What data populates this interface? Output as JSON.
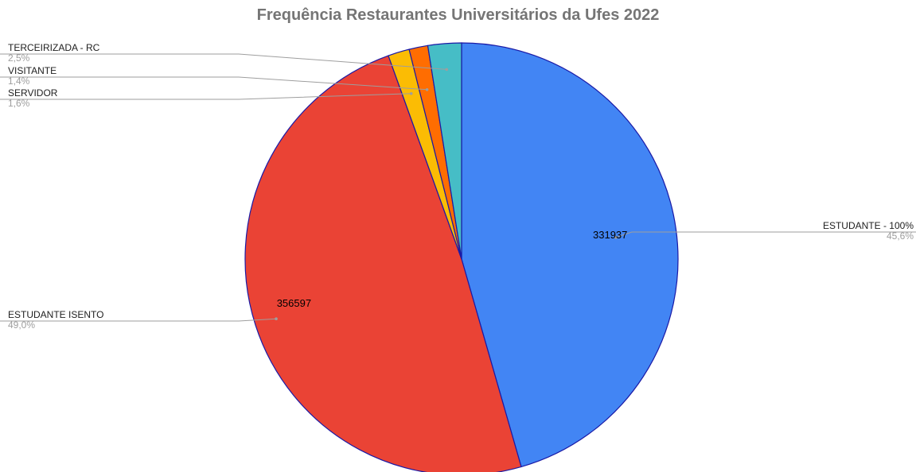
{
  "chart_data": {
    "type": "pie",
    "title": "Frequência Restaurantes Universitários da Ufes 2022",
    "slices": [
      {
        "label": "ESTUDANTE - 100%",
        "value": 331937,
        "percent_label": "45,6%",
        "value_label": "331937",
        "color": "#4285f4"
      },
      {
        "label": "ESTUDANTE ISENTO",
        "value": 356597,
        "percent_label": "49,0%",
        "value_label": "356597",
        "color": "#ea4335"
      },
      {
        "label": "SERVIDOR",
        "percent": 1.6,
        "percent_label": "1,6%",
        "color": "#fbbc04"
      },
      {
        "label": "VISITANTE",
        "percent": 1.4,
        "percent_label": "1,4%",
        "color": "#ff6d01"
      },
      {
        "label": "TERCEIRIZADA - RC",
        "percent": 2.5,
        "percent_label": "2,5%",
        "color": "#46bdc6"
      }
    ],
    "start_angle_deg": 0,
    "direction": "clockwise",
    "slice_border_color": "#1a1aa6",
    "leader_line_color": "#9e9e9e",
    "label_color": "#212121",
    "percent_color": "#9e9e9e",
    "value_label_color": "#000000"
  }
}
